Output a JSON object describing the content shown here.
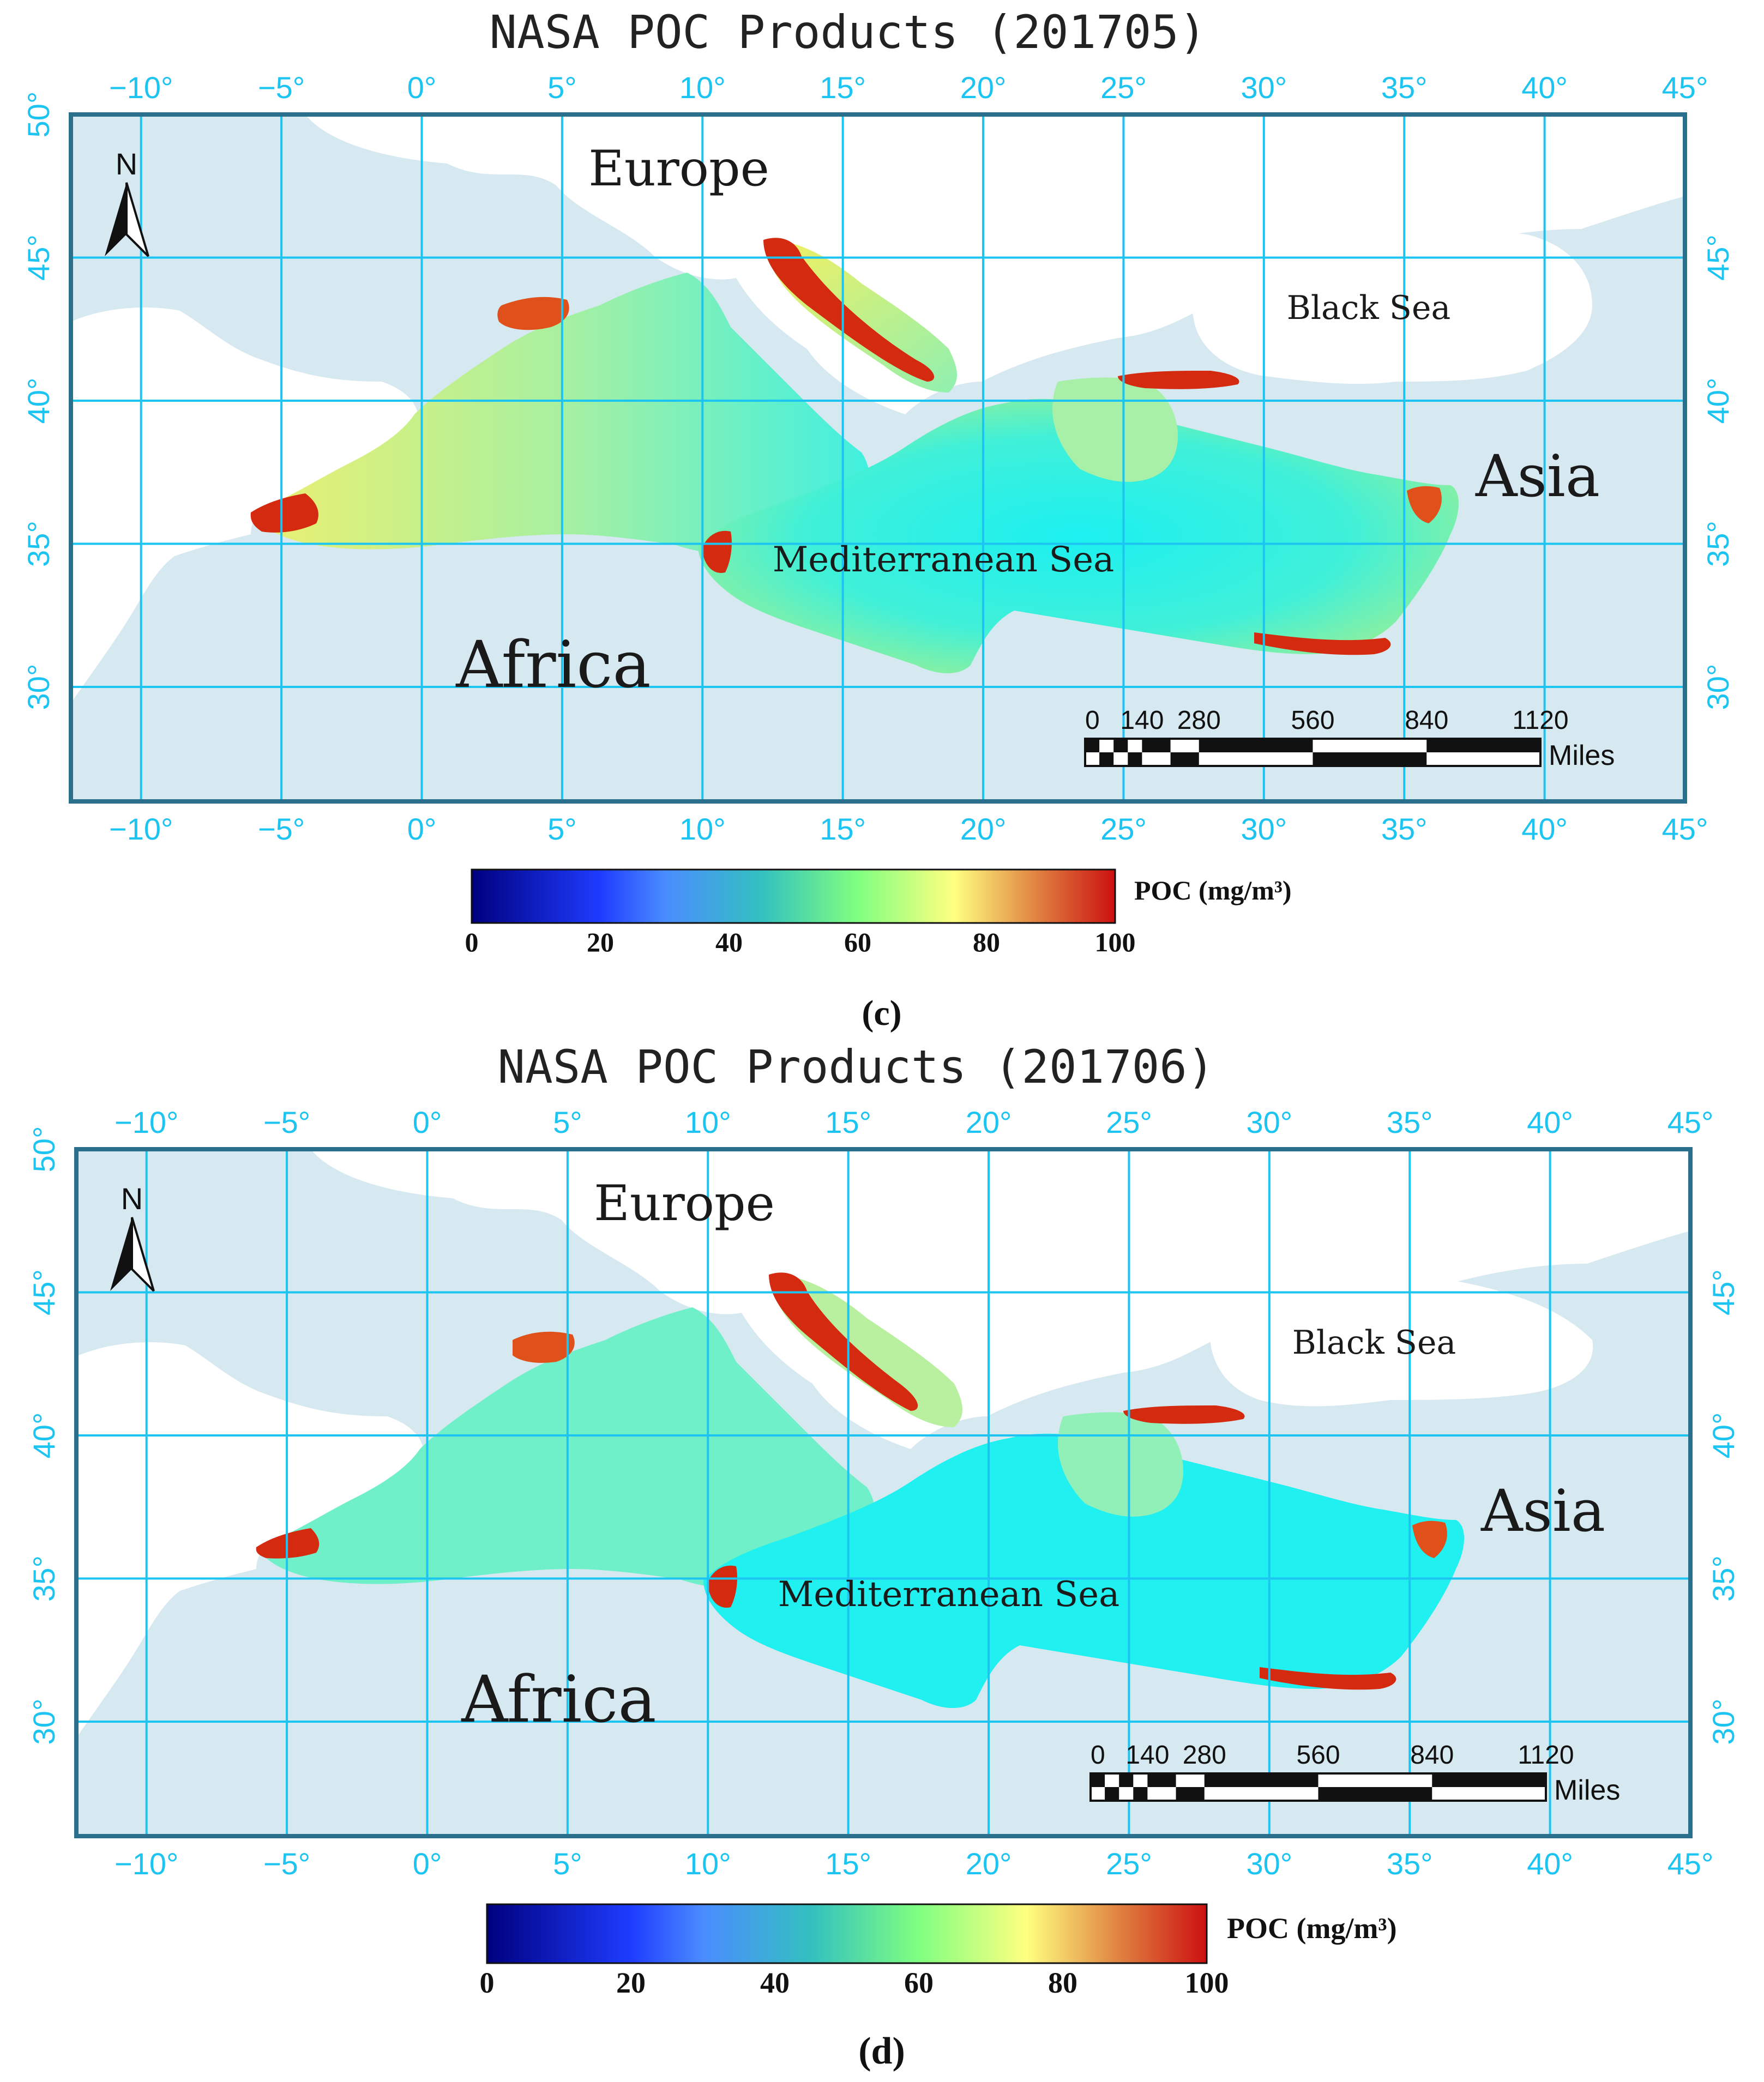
{
  "figure": {
    "panels": [
      {
        "id": "c",
        "title": "NASA POC Products (201705)",
        "panel_label": "(c)",
        "labels": {
          "europe": "Europe",
          "africa": "Africa",
          "asia": "Asia",
          "black_sea": "Black Sea",
          "mediterranean": "Mediterranean Sea",
          "north": "N"
        },
        "scale_bar": {
          "ticks": [
            "0",
            "140",
            "280",
            "560",
            "840",
            "1120"
          ],
          "unit": "Miles"
        },
        "colorbar": {
          "label": "POC (mg/m³)",
          "ticks": [
            "0",
            "20",
            "40",
            "60",
            "80",
            "100"
          ]
        }
      },
      {
        "id": "d",
        "title": "NASA POC Products (201706)",
        "panel_label": "(d)",
        "labels": {
          "europe": "Europe",
          "africa": "Africa",
          "asia": "Asia",
          "black_sea": "Black Sea",
          "mediterranean": "Mediterranean Sea",
          "north": "N"
        },
        "scale_bar": {
          "ticks": [
            "0",
            "140",
            "280",
            "560",
            "840",
            "1120"
          ],
          "unit": "Miles"
        },
        "colorbar": {
          "label": "POC (mg/m³)",
          "ticks": [
            "0",
            "20",
            "40",
            "60",
            "80",
            "100"
          ]
        }
      }
    ],
    "lon_labels": [
      "−10°",
      "−5°",
      "0°",
      "5°",
      "10°",
      "15°",
      "20°",
      "25°",
      "30°",
      "35°",
      "40°",
      "45°"
    ],
    "lat_labels": [
      "50°",
      "45°",
      "40°",
      "35°",
      "30°"
    ],
    "colors": {
      "ocean_background": "#d6e8f0",
      "land": "#ffffff",
      "graticule": "#1cc4f2",
      "frame": "#2a6f8c",
      "poc_colormap": [
        "#00007f",
        "#1e3cff",
        "#4a8cff",
        "#33c0c0",
        "#80ff80",
        "#ffff80",
        "#e08040",
        "#cc1010"
      ]
    }
  }
}
